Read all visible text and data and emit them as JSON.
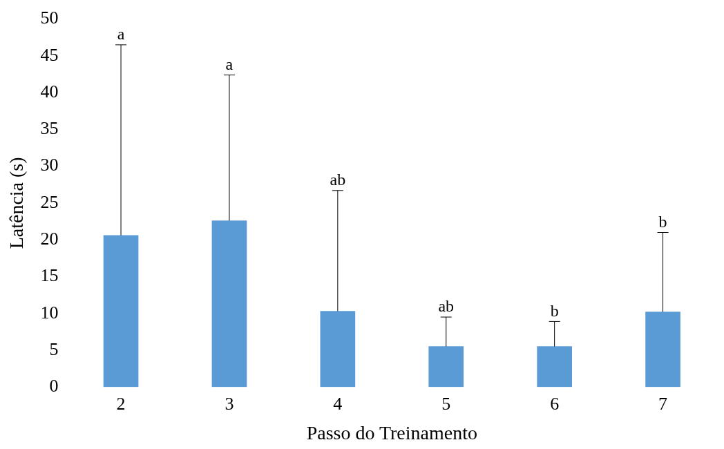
{
  "chart_data": {
    "type": "bar",
    "xlabel": "Passo do Treinamento",
    "ylabel": "Latência (s)",
    "categories": [
      "2",
      "3",
      "4",
      "5",
      "6",
      "7"
    ],
    "values": [
      20.6,
      22.6,
      10.3,
      5.5,
      5.5,
      10.2
    ],
    "errors": [
      [
        20.6,
        46.5
      ],
      [
        22.6,
        42.4
      ],
      [
        10.3,
        26.7
      ],
      [
        5.5,
        9.5
      ],
      [
        5.5,
        8.9
      ],
      [
        10.2,
        21.0
      ]
    ],
    "color": "#5b9bd5",
    "ylim": [
      0,
      50
    ],
    "yticks": [
      0,
      5,
      10,
      15,
      20,
      25,
      30,
      35,
      40,
      45,
      50
    ],
    "grid": false,
    "legend": false,
    "annotations": [
      {
        "text": "a",
        "x": "2",
        "y": 46.5
      },
      {
        "text": "a",
        "x": "3",
        "y": 42.4
      },
      {
        "text": "ab",
        "x": "4",
        "y": 26.7
      },
      {
        "text": "ab",
        "x": "5",
        "y": 9.5
      },
      {
        "text": "b",
        "x": "6",
        "y": 8.9
      },
      {
        "text": "b",
        "x": "7",
        "y": 21.0
      }
    ]
  }
}
